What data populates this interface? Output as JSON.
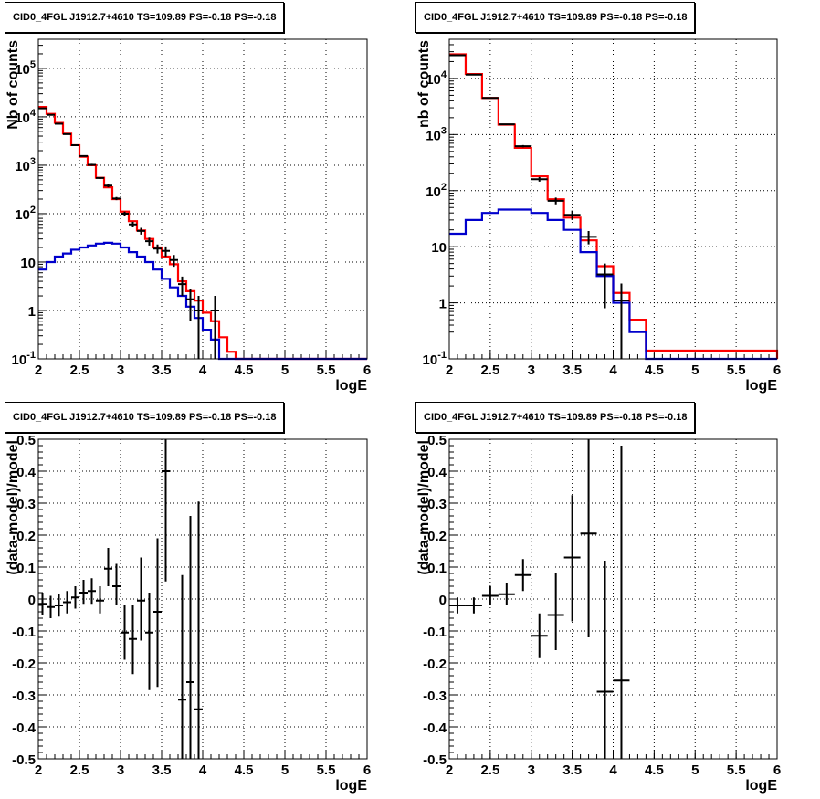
{
  "colors": {
    "data": "#000000",
    "total_model": "#ff0000",
    "source_model": "#0000cc",
    "grid": "#000000"
  },
  "chart_data": [
    {
      "type": "line",
      "title": "CID0_4FGL J1912.7+4610 TS=109.89 PS=-0.18 PS=-0.18",
      "xlabel": "logE",
      "ylabel": "Nb of counts",
      "xlim": [
        2,
        6
      ],
      "ylim": [
        0.1,
        400000
      ],
      "log_y": true,
      "grid": true,
      "xticks": [
        "2",
        "2.5",
        "3",
        "3.5",
        "4",
        "4.5",
        "5",
        "5.5",
        "6"
      ],
      "yticks": [
        "10^-1",
        "1",
        "10",
        "10^2",
        "10^3",
        "10^4",
        "10^5"
      ],
      "bin_edges": [
        2.0,
        2.1,
        2.2,
        2.3,
        2.4,
        2.5,
        2.6,
        2.7,
        2.8,
        2.9,
        3.0,
        3.1,
        3.2,
        3.3,
        3.4,
        3.5,
        3.6,
        3.7,
        3.8,
        3.9,
        4.0,
        4.1,
        4.2,
        4.3,
        4.4,
        4.5,
        6.0
      ],
      "series": [
        {
          "values": [
            16000,
            11500,
            7500,
            4500,
            2600,
            1500,
            1000,
            550,
            350,
            200,
            110,
            70,
            45,
            30,
            20,
            13,
            9,
            4,
            2.5,
            1.6,
            0.9,
            0.6,
            0.28,
            0.14,
            0.1,
            0.1
          ]
        },
        {
          "values": [
            7,
            10,
            13,
            15,
            18,
            20,
            22,
            24,
            25,
            24,
            20,
            16,
            13,
            10,
            7,
            4.5,
            3,
            2,
            1.2,
            0.7,
            0.4,
            0.25,
            0.1,
            0.1,
            0.1,
            0.1
          ]
        }
      ],
      "points": [
        {
          "x": 2.05,
          "y": 15000,
          "lo": 14500,
          "hi": 15500
        },
        {
          "x": 2.15,
          "y": 11000,
          "lo": 10600,
          "hi": 11400
        },
        {
          "x": 2.25,
          "y": 7200,
          "lo": 7000,
          "hi": 7450
        },
        {
          "x": 2.35,
          "y": 4400,
          "lo": 4250,
          "hi": 4550
        },
        {
          "x": 2.45,
          "y": 2600,
          "lo": 2500,
          "hi": 2700
        },
        {
          "x": 2.55,
          "y": 1550,
          "lo": 1480,
          "hi": 1620
        },
        {
          "x": 2.65,
          "y": 1020,
          "lo": 970,
          "hi": 1070
        },
        {
          "x": 2.75,
          "y": 545,
          "lo": 520,
          "hi": 570
        },
        {
          "x": 2.85,
          "y": 380,
          "lo": 350,
          "hi": 410
        },
        {
          "x": 2.95,
          "y": 205,
          "lo": 190,
          "hi": 220
        },
        {
          "x": 3.05,
          "y": 100,
          "lo": 90,
          "hi": 110
        },
        {
          "x": 3.15,
          "y": 60,
          "lo": 52,
          "hi": 68
        },
        {
          "x": 3.25,
          "y": 44,
          "lo": 37,
          "hi": 51
        },
        {
          "x": 3.35,
          "y": 27,
          "lo": 22,
          "hi": 32
        },
        {
          "x": 3.45,
          "y": 19,
          "lo": 15,
          "hi": 23
        },
        {
          "x": 3.55,
          "y": 17,
          "lo": 13,
          "hi": 21
        },
        {
          "x": 3.65,
          "y": 11,
          "lo": 8,
          "hi": 14
        },
        {
          "x": 3.75,
          "y": 3.5,
          "lo": 2.0,
          "hi": 5.0
        },
        {
          "x": 3.85,
          "y": 1.7,
          "lo": 0.6,
          "hi": 2.8
        },
        {
          "x": 3.95,
          "y": 1.0,
          "lo": 0.1,
          "hi": 2.0
        },
        {
          "x": 4.15,
          "y": 1.0,
          "lo": 0.1,
          "hi": 2.0
        }
      ]
    },
    {
      "type": "line",
      "title": "CID0_4FGL J1912.7+4610 TS=109.89 PS=-0.18 PS=-0.18",
      "xlabel": "logE",
      "ylabel": "nb of counts",
      "xlim": [
        2,
        6
      ],
      "ylim": [
        0.1,
        50000
      ],
      "log_y": true,
      "grid": true,
      "xticks": [
        "2",
        "2.5",
        "3",
        "3.5",
        "4",
        "4.5",
        "5",
        "5.5",
        "6"
      ],
      "yticks": [
        "10^-1",
        "1",
        "10",
        "10^2",
        "10^3",
        "10^4"
      ],
      "bin_edges": [
        2.0,
        2.2,
        2.4,
        2.6,
        2.8,
        3.0,
        3.2,
        3.4,
        3.6,
        3.8,
        4.0,
        4.2,
        4.4,
        6.0
      ],
      "series": [
        {
          "values": [
            27000,
            12000,
            4500,
            1500,
            580,
            180,
            70,
            33,
            13,
            4.5,
            1.5,
            0.5,
            0.14,
            0.1
          ]
        },
        {
          "values": [
            17,
            30,
            40,
            46,
            46,
            40,
            30,
            20,
            8,
            3,
            1,
            0.3,
            0.1,
            0.1
          ]
        }
      ],
      "points": [
        {
          "x": 2.1,
          "y": 26000,
          "lo": 25600,
          "hi": 26400
        },
        {
          "x": 2.3,
          "y": 11700,
          "lo": 11400,
          "hi": 12000
        },
        {
          "x": 2.5,
          "y": 4500,
          "lo": 4400,
          "hi": 4620
        },
        {
          "x": 2.7,
          "y": 1520,
          "lo": 1470,
          "hi": 1570
        },
        {
          "x": 2.9,
          "y": 620,
          "lo": 590,
          "hi": 650
        },
        {
          "x": 3.1,
          "y": 160,
          "lo": 145,
          "hi": 175
        },
        {
          "x": 3.3,
          "y": 66,
          "lo": 57,
          "hi": 75
        },
        {
          "x": 3.5,
          "y": 37,
          "lo": 30,
          "hi": 44
        },
        {
          "x": 3.7,
          "y": 15,
          "lo": 11,
          "hi": 19
        },
        {
          "x": 3.9,
          "y": 3.2,
          "lo": 0.8,
          "hi": 5.0
        },
        {
          "x": 4.1,
          "y": 1.1,
          "lo": 0.1,
          "hi": 2.2
        }
      ]
    },
    {
      "type": "scatter",
      "title": "CID0_4FGL J1912.7+4610 TS=109.89 PS=-0.18 PS=-0.18",
      "xlabel": "logE",
      "ylabel": "(data-model)/model",
      "xlim": [
        2,
        6
      ],
      "ylim": [
        -0.5,
        0.5
      ],
      "grid": true,
      "xticks": [
        "2",
        "2.5",
        "3",
        "3.5",
        "4",
        "4.5",
        "5",
        "5.5",
        "6"
      ],
      "yticks": [
        "-0.5",
        "-0.4",
        "-0.3",
        "-0.2",
        "-0.1",
        "0",
        "0.1",
        "0.2",
        "0.3",
        "0.4",
        "0.5"
      ],
      "points": [
        {
          "x": 2.05,
          "xlo": 2.0,
          "xhi": 2.1,
          "y": -0.015,
          "lo": -0.05,
          "hi": 0.02
        },
        {
          "x": 2.15,
          "xlo": 2.1,
          "xhi": 2.2,
          "y": -0.025,
          "lo": -0.06,
          "hi": 0.01
        },
        {
          "x": 2.25,
          "xlo": 2.2,
          "xhi": 2.3,
          "y": -0.02,
          "lo": -0.055,
          "hi": 0.015
        },
        {
          "x": 2.35,
          "xlo": 2.3,
          "xhi": 2.4,
          "y": -0.01,
          "lo": -0.045,
          "hi": 0.025
        },
        {
          "x": 2.45,
          "xlo": 2.4,
          "xhi": 2.5,
          "y": 0.005,
          "lo": -0.03,
          "hi": 0.04
        },
        {
          "x": 2.55,
          "xlo": 2.5,
          "xhi": 2.6,
          "y": 0.02,
          "lo": -0.015,
          "hi": 0.06
        },
        {
          "x": 2.65,
          "xlo": 2.6,
          "xhi": 2.7,
          "y": 0.025,
          "lo": -0.015,
          "hi": 0.065
        },
        {
          "x": 2.75,
          "xlo": 2.7,
          "xhi": 2.8,
          "y": -0.005,
          "lo": -0.045,
          "hi": 0.04
        },
        {
          "x": 2.85,
          "xlo": 2.8,
          "xhi": 2.9,
          "y": 0.095,
          "lo": 0.04,
          "hi": 0.16
        },
        {
          "x": 2.95,
          "xlo": 2.9,
          "xhi": 3.0,
          "y": 0.04,
          "lo": -0.02,
          "hi": 0.11
        },
        {
          "x": 3.05,
          "xlo": 3.0,
          "xhi": 3.1,
          "y": -0.105,
          "lo": -0.19,
          "hi": -0.02
        },
        {
          "x": 3.15,
          "xlo": 3.1,
          "xhi": 3.2,
          "y": -0.125,
          "lo": -0.235,
          "hi": -0.02
        },
        {
          "x": 3.25,
          "xlo": 3.2,
          "xhi": 3.3,
          "y": -0.005,
          "lo": -0.13,
          "hi": 0.13
        },
        {
          "x": 3.35,
          "xlo": 3.3,
          "xhi": 3.4,
          "y": -0.105,
          "lo": -0.285,
          "hi": 0.02
        },
        {
          "x": 3.45,
          "xlo": 3.4,
          "xhi": 3.5,
          "y": -0.04,
          "lo": -0.275,
          "hi": 0.19
        },
        {
          "x": 3.55,
          "xlo": 3.5,
          "xhi": 3.6,
          "y": 0.4,
          "lo": 0.055,
          "hi": 0.5
        },
        {
          "x": 3.75,
          "xlo": 3.7,
          "xhi": 3.8,
          "y": -0.315,
          "lo": -0.5,
          "hi": 0.075
        },
        {
          "x": 3.85,
          "xlo": 3.8,
          "xhi": 3.9,
          "y": -0.26,
          "lo": -0.5,
          "hi": 0.26
        },
        {
          "x": 3.95,
          "xlo": 3.9,
          "xhi": 4.0,
          "y": -0.345,
          "lo": -0.5,
          "hi": 0.305
        }
      ]
    },
    {
      "type": "scatter",
      "title": "CID0_4FGL J1912.7+4610 TS=109.89 PS=-0.18 PS=-0.18",
      "xlabel": "logE",
      "ylabel": "(data-model)/model",
      "xlim": [
        2,
        6
      ],
      "ylim": [
        -0.5,
        0.5
      ],
      "grid": true,
      "xticks": [
        "2",
        "2.5",
        "3",
        "3.5",
        "4",
        "4.5",
        "5",
        "5.5",
        "6"
      ],
      "yticks": [
        "-0.5",
        "-0.4",
        "-0.3",
        "-0.2",
        "-0.1",
        "0",
        "0.1",
        "0.2",
        "0.3",
        "0.4",
        "0.5"
      ],
      "points": [
        {
          "x": 2.1,
          "xlo": 2.0,
          "xhi": 2.2,
          "y": -0.02,
          "lo": -0.045,
          "hi": 0.005
        },
        {
          "x": 2.3,
          "xlo": 2.2,
          "xhi": 2.4,
          "y": -0.02,
          "lo": -0.045,
          "hi": 0.005
        },
        {
          "x": 2.5,
          "xlo": 2.4,
          "xhi": 2.6,
          "y": 0.01,
          "lo": -0.02,
          "hi": 0.04
        },
        {
          "x": 2.7,
          "xlo": 2.6,
          "xhi": 2.8,
          "y": 0.015,
          "lo": -0.02,
          "hi": 0.05
        },
        {
          "x": 2.9,
          "xlo": 2.8,
          "xhi": 3.0,
          "y": 0.075,
          "lo": 0.025,
          "hi": 0.125
        },
        {
          "x": 3.1,
          "xlo": 3.0,
          "xhi": 3.2,
          "y": -0.115,
          "lo": -0.185,
          "hi": -0.045
        },
        {
          "x": 3.3,
          "xlo": 3.2,
          "xhi": 3.4,
          "y": -0.05,
          "lo": -0.16,
          "hi": 0.08
        },
        {
          "x": 3.5,
          "xlo": 3.4,
          "xhi": 3.6,
          "y": 0.13,
          "lo": -0.07,
          "hi": 0.325
        },
        {
          "x": 3.7,
          "xlo": 3.6,
          "xhi": 3.8,
          "y": 0.205,
          "lo": -0.12,
          "hi": 0.5
        },
        {
          "x": 3.9,
          "xlo": 3.8,
          "xhi": 4.0,
          "y": -0.29,
          "lo": -0.5,
          "hi": 0.12
        },
        {
          "x": 4.1,
          "xlo": 4.0,
          "xhi": 4.2,
          "y": -0.255,
          "lo": -0.5,
          "hi": 0.48
        }
      ]
    }
  ]
}
